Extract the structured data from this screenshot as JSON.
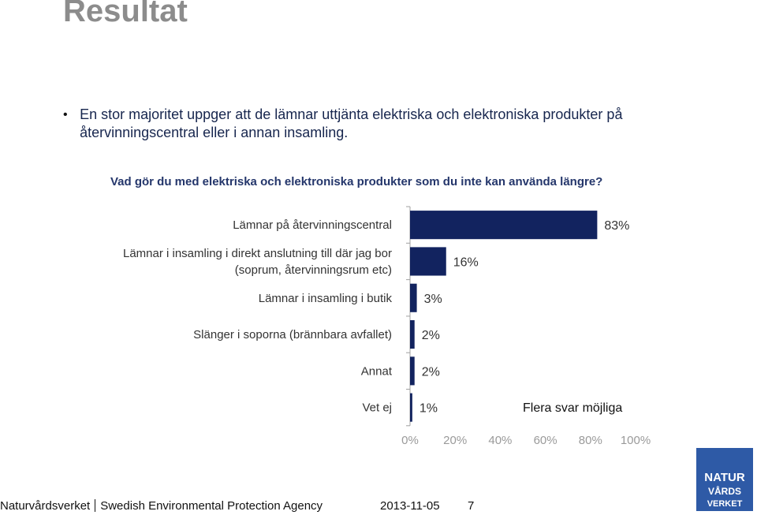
{
  "slide": {
    "title": "Resultat",
    "bullet": "En stor majoritet uppger att de lämnar uttjänta elektriska och elektroniska produkter på återvinningscentral eller i annan insamling.",
    "question": "Vad gör du med elektriska och elektroniska produkter som du inte kan använda längre?"
  },
  "chart_data": {
    "type": "bar",
    "orientation": "horizontal",
    "categories": [
      [
        "Lämnar på återvinningscentral"
      ],
      [
        "Lämnar i insamling i direkt anslutning till där jag bor",
        "(soprum, återvinningsrum etc)"
      ],
      [
        "Lämnar i insamling i butik"
      ],
      [
        "Slänger i soporna (brännbara avfallet)"
      ],
      [
        "Annat"
      ],
      [
        "Vet ej"
      ]
    ],
    "values": [
      83,
      16,
      3,
      2,
      2,
      1
    ],
    "value_labels": [
      "83%",
      "16%",
      "3%",
      "2%",
      "2%",
      "1%"
    ],
    "xlim": [
      0,
      100
    ],
    "xticks": [
      "0%",
      "20%",
      "40%",
      "60%",
      "80%",
      "100%"
    ],
    "grid": false,
    "bar_color": "#12235f",
    "note": "Flera svar möjliga"
  },
  "footer": {
    "org": "Naturvårdsverket",
    "org_en": "Swedish Environmental Protection Agency",
    "date": "2013-11-05",
    "page": "7"
  },
  "logo": {
    "lines": [
      "NATUR",
      "VÅRDS",
      "VERKET"
    ],
    "icon": "crown-icon",
    "color": "#2e5aa6"
  }
}
